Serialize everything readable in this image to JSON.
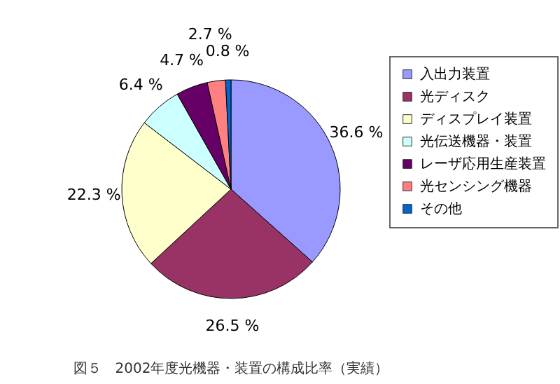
{
  "chart_data": {
    "type": "pie",
    "title": "図５　2002年度光機器・装置の構成比率（実績）",
    "categories": [
      "入出力装置",
      "光ディスク",
      "ディスプレイ装置",
      "光伝送機器・装置",
      "レーザ応用生産装置",
      "光センシング機器",
      "その他"
    ],
    "values": [
      36.6,
      26.5,
      22.3,
      6.4,
      4.7,
      2.7,
      0.8
    ],
    "value_labels": [
      "36.6 %",
      "26.5 %",
      "22.3 %",
      "6.4 %",
      "4.7 %",
      "2.7 %",
      "0.8 %"
    ],
    "colors": [
      "#9999ff",
      "#993366",
      "#ffffcc",
      "#ccffff",
      "#660066",
      "#ff8080",
      "#0066cc"
    ],
    "legend": "right"
  }
}
